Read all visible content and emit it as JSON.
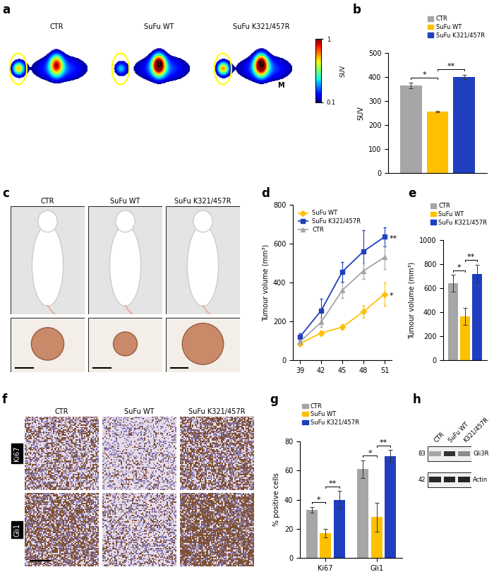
{
  "chart_data": [
    {
      "panel_label": "b",
      "type": "bar",
      "categories": [
        null
      ],
      "series": [
        {
          "name": "CTR",
          "color": "#a6a6a6",
          "values": [
            365
          ],
          "errors": [
            12
          ]
        },
        {
          "name": "SuFu WT",
          "color": "#ffc000",
          "values": [
            255
          ],
          "errors": [
            3
          ]
        },
        {
          "name": "SuFu K321/457R",
          "color": "#1f3fbf",
          "values": [
            400
          ],
          "errors": [
            10
          ]
        }
      ],
      "y_label": "SUV",
      "ylim": [
        0,
        500
      ],
      "yticks": [
        0,
        100,
        200,
        300,
        400,
        500
      ],
      "legend": "upper right",
      "tick_labels": "y",
      "significance": [
        {
          "between": [
            "CTR",
            "SuFu WT"
          ],
          "label": "*"
        },
        {
          "between": [
            "SuFu WT",
            "SuFu K321/457R"
          ],
          "label": "**"
        }
      ]
    },
    {
      "panel_label": "d",
      "type": "line",
      "x": [
        39,
        42,
        45,
        48,
        51
      ],
      "series": [
        {
          "name": "SuFu WT",
          "color": "#ffc000",
          "marker": "diamond",
          "values": [
            85,
            140,
            170,
            250,
            340
          ],
          "errors": [
            8,
            12,
            15,
            30,
            60
          ]
        },
        {
          "name": "SuFu K321/457R",
          "color": "#1f3fbf",
          "marker": "square",
          "values": [
            120,
            255,
            455,
            560,
            635
          ],
          "errors": [
            20,
            60,
            50,
            110,
            50
          ]
        },
        {
          "name": "CTR",
          "color": "#a6a6a6",
          "marker": "triangle",
          "values": [
            95,
            195,
            360,
            460,
            530
          ],
          "errors": [
            10,
            25,
            40,
            40,
            60
          ]
        }
      ],
      "y_label": "Tumour volume (mm³)",
      "xlim": [
        38,
        52
      ],
      "xticks": [
        39,
        42,
        45,
        48,
        51
      ],
      "ylim": [
        0,
        800
      ],
      "yticks": [
        0,
        200,
        400,
        600,
        800
      ],
      "legend": "upper left",
      "annotations": [
        {
          "series": "SuFu K321/457R",
          "text": "**"
        },
        {
          "series": "SuFu WT",
          "text": "*"
        }
      ]
    },
    {
      "panel_label": "e",
      "type": "bar",
      "categories": [
        null
      ],
      "series": [
        {
          "name": "CTR",
          "color": "#a6a6a6",
          "values": [
            640
          ],
          "errors": [
            70
          ]
        },
        {
          "name": "SuFu WT",
          "color": "#ffc000",
          "values": [
            365
          ],
          "errors": [
            70
          ]
        },
        {
          "name": "SuFu K321/457R",
          "color": "#1f3fbf",
          "values": [
            720
          ],
          "errors": [
            75
          ]
        }
      ],
      "y_label": "Tumour volume (mm³)",
      "ylim": [
        0,
        1000
      ],
      "yticks": [
        0,
        200,
        400,
        600,
        800,
        1000
      ],
      "legend": "upper left",
      "tick_labels": "y",
      "significance": [
        {
          "between": [
            "CTR",
            "SuFu WT"
          ],
          "label": "*"
        },
        {
          "between": [
            "SuFu WT",
            "SuFu K321/457R"
          ],
          "label": "**"
        }
      ]
    },
    {
      "panel_label": "g",
      "type": "bar",
      "categories": [
        "Ki67",
        "Gli1"
      ],
      "series": [
        {
          "name": "CTR",
          "color": "#a6a6a6",
          "values": [
            33,
            61
          ],
          "errors": [
            2,
            6
          ]
        },
        {
          "name": "SuFu WT",
          "color": "#ffc000",
          "values": [
            17,
            28
          ],
          "errors": [
            3,
            10
          ]
        },
        {
          "name": "SuFu K321/457R",
          "color": "#1f3fbf",
          "values": [
            40,
            70
          ],
          "errors": [
            6,
            4
          ]
        }
      ],
      "y_label": "% positive cells",
      "ylim": [
        0,
        80
      ],
      "yticks": [
        0,
        20,
        40,
        60,
        80
      ],
      "legend": "upper left",
      "significance": [
        {
          "between": [
            "CTR",
            "SuFu WT"
          ],
          "label": "*"
        },
        {
          "between": [
            "SuFu WT",
            "SuFu K321/457R"
          ],
          "label": "**"
        }
      ]
    }
  ],
  "panels": {
    "a": {
      "panel_label": "a",
      "images": [
        {
          "title": "CTR",
          "marks": []
        },
        {
          "title": "SuFu WT",
          "marks": [
            "U"
          ]
        },
        {
          "title": "SuFu K321/457R",
          "marks": [
            "U",
            "M"
          ]
        }
      ],
      "colorbar": {
        "label": "SUV",
        "range": [
          0.1,
          1
        ],
        "ticks": [
          0.1,
          1
        ]
      }
    },
    "c": {
      "panel_label": "c",
      "columns": [
        "CTR",
        "SuFu WT",
        "SuFu K321/457R"
      ]
    },
    "f": {
      "panel_label": "f",
      "columns": [
        "CTR",
        "SuFu WT",
        "SuFu K321/457R"
      ],
      "rows": [
        "Ki67",
        "Gli1"
      ]
    },
    "h": {
      "panel_label": "h",
      "columns": [
        "CTR",
        "SuFu WT",
        "K321/457R"
      ],
      "rows": [
        {
          "name": "Gli3R",
          "marker_kda": 83
        },
        {
          "name": "Actin",
          "marker_kda": 42
        }
      ]
    }
  }
}
